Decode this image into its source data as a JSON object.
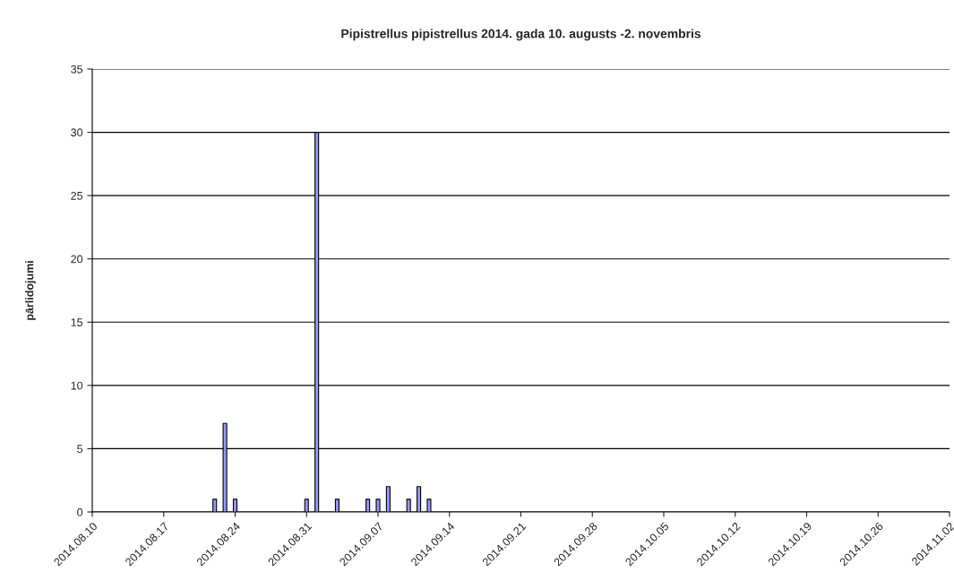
{
  "chart_data": {
    "type": "bar",
    "title": "Pipistrellus pipistrellus 2014. gada 10. augusts -2. novembris",
    "ylabel": "pārlidojumi",
    "x": [
      "2014-08-22",
      "2014-08-23",
      "2014-08-24",
      "2014-08-31",
      "2014-09-01",
      "2014-09-03",
      "2014-09-06",
      "2014-09-07",
      "2014-09-08",
      "2014-09-10",
      "2014-09-11",
      "2014-09-12"
    ],
    "values": [
      1,
      7,
      1,
      1,
      30,
      1,
      1,
      1,
      2,
      1,
      2,
      1
    ],
    "color": "#9999ff",
    "xlim": [
      "2014-08-10",
      "2014-11-02"
    ],
    "xticks": [
      {
        "value": "2014-08-10",
        "label": "2014.08.10"
      },
      {
        "value": "2014-08-17",
        "label": "2014.08.17"
      },
      {
        "value": "2014-08-24",
        "label": "2014.08.24"
      },
      {
        "value": "2014-08-31",
        "label": "2014.08.31"
      },
      {
        "value": "2014-09-07",
        "label": "2014.09.07"
      },
      {
        "value": "2014-09-14",
        "label": "2014.09.14"
      },
      {
        "value": "2014-09-21",
        "label": "2014.09.21"
      },
      {
        "value": "2014-09-28",
        "label": "2014.09.28"
      },
      {
        "value": "2014-10-05",
        "label": "2014.10.05"
      },
      {
        "value": "2014-10-12",
        "label": "2014.10.12"
      },
      {
        "value": "2014-10-19",
        "label": "2014.10.19"
      },
      {
        "value": "2014-10-26",
        "label": "2014.10.26"
      },
      {
        "value": "2014-11-02",
        "label": "2014.11.02"
      }
    ],
    "ylim": [
      0,
      35
    ],
    "yticks": [
      0,
      5,
      10,
      15,
      20,
      25,
      30,
      35
    ],
    "grid": "y"
  }
}
